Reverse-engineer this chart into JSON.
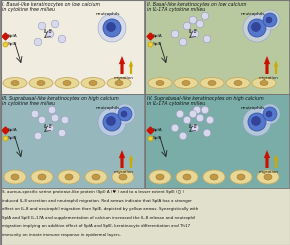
{
  "panel_titles": [
    [
      "I. Basal-like keratinocytes on low calcium",
      "in cytokine free milieu"
    ],
    [
      "II. Basal-like keratinocytes on low calcium",
      "in IL-17A cytokine milieu"
    ],
    [
      "III. Suprabasal-like keratinocytes on high calcium",
      "in cytokine free milieu"
    ],
    [
      "IV. Suprabasal-like keratinocytes on high calcium",
      "in IL-17A cytokine milieu"
    ]
  ],
  "panel_bg_colors": [
    "#f0ede0",
    "#b8c9a0",
    "#96b8bc",
    "#7aada8"
  ],
  "cell_fill": "#e8d898",
  "cell_edge": "#c8aa60",
  "nucleus_fill": "#c09848",
  "neutrophil_halo": "#c0c8e8",
  "neutrophil_body": "#5577cc",
  "neutrophil_nucleus": "#334499",
  "il8_fill": "#d8d8ee",
  "il8_edge": "#9999bb",
  "caption_bg": "#e0e0cc",
  "border_color": "#777777",
  "red_arrow": "#cc1100",
  "yellow_arrow": "#ccaa00",
  "splA_color": "#cc1100",
  "splE_color": "#ccaa00",
  "caption": "S. aureus-specific serine protease-like protein (Spl) A (  ) and to a lesser extent SplE (  ) induced IL-8 secretion and neutrophil migration. Red arrows indicate that SplA has a stronger effect on IL-8 and neutrophil migration than SplE, depicted by yellow arrows. Synergistically with SplA and SplE IL-17A and supplementation of calcium increased the IL-8 release and neutrophil migration implying an additive effect of SplA and SplE, keratinocyte differentiation and Th17 immunity on innate immune response in epidermal layers."
}
